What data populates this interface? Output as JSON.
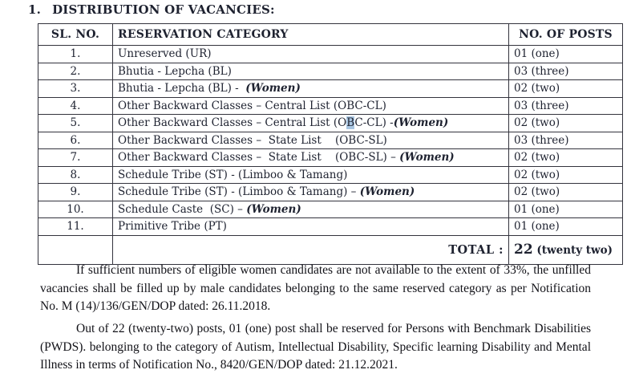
{
  "heading": {
    "number": "1.",
    "title": "DISTRIBUTION OF VACANCIES:"
  },
  "table": {
    "headers": [
      "SL. NO.",
      "RESERVATION CATEGORY",
      "NO. OF POSTS"
    ],
    "rows": [
      {
        "sl": "1.",
        "parts": [
          {
            "text": "Unreserved (UR)"
          }
        ],
        "posts": "01 (one)"
      },
      {
        "sl": "2.",
        "parts": [
          {
            "text": "Bhutia - Lepcha (BL)"
          }
        ],
        "posts": "03 (three)"
      },
      {
        "sl": "3.",
        "parts": [
          {
            "text": "Bhutia - Lepcha (BL) -  "
          },
          {
            "text": "(Women)",
            "style": "women"
          }
        ],
        "posts": "02 (two)"
      },
      {
        "sl": "4.",
        "parts": [
          {
            "text": "Other Backward Classes – Central List (OBC-CL)"
          }
        ],
        "posts": "03 (three)"
      },
      {
        "sl": "5.",
        "parts": [
          {
            "text": "Other Backward Classes – Central List (O"
          },
          {
            "text": "B",
            "style": "highlight"
          },
          {
            "text": "C-CL) -"
          },
          {
            "text": "(Women)",
            "style": "women"
          }
        ],
        "posts": "02 (two)"
      },
      {
        "sl": "6.",
        "parts": [
          {
            "text": "Other Backward Classes –  State List    (OBC-SL)"
          }
        ],
        "posts": "03 (three)"
      },
      {
        "sl": "7.",
        "parts": [
          {
            "text": "Other Backward Classes –  State List    (OBC-SL) – "
          },
          {
            "text": "(Women)",
            "style": "women"
          }
        ],
        "posts": "02 (two)"
      },
      {
        "sl": "8.",
        "parts": [
          {
            "text": "Schedule Tribe (ST) - (Limboo & Tamang)"
          }
        ],
        "posts": "02 (two)"
      },
      {
        "sl": "9.",
        "parts": [
          {
            "text": "Schedule Tribe (ST) - (Limboo & Tamang) – "
          },
          {
            "text": "(Women)",
            "style": "women"
          }
        ],
        "posts": "02 (two)"
      },
      {
        "sl": "10.",
        "parts": [
          {
            "text": "Schedule Caste  (SC) – "
          },
          {
            "text": "(Women)",
            "style": "women"
          }
        ],
        "posts": "01 (one)"
      },
      {
        "sl": "11.",
        "parts": [
          {
            "text": "Primitive Tribe (PT)"
          }
        ],
        "posts": "01 (one)"
      }
    ],
    "total_label": "TOTAL :",
    "total_number": "22",
    "total_words": "(twenty two)"
  },
  "paragraphs": [
    "If sufficient numbers of eligible women candidates are not available to the extent of 33%, the unfilled vacancies shall be filled up by male candidates belonging to the same reserved category as per Notification No. M (14)/136/GEN/DOP dated: 26.11.2018.",
    "Out of 22 (twenty-two) posts, 01 (one) post shall be reserved for Persons with Benchmark Disabilities (PWDS). belonging to the category of Autism, Intellectual Disability, Specific learning Disability and Mental Illness in terms of Notification No., 8420/GEN/DOP dated: 21.12.2021."
  ],
  "colors": {
    "selection_highlight": "#a9c6e2",
    "text": "#1e2230",
    "border": "#33333d"
  }
}
